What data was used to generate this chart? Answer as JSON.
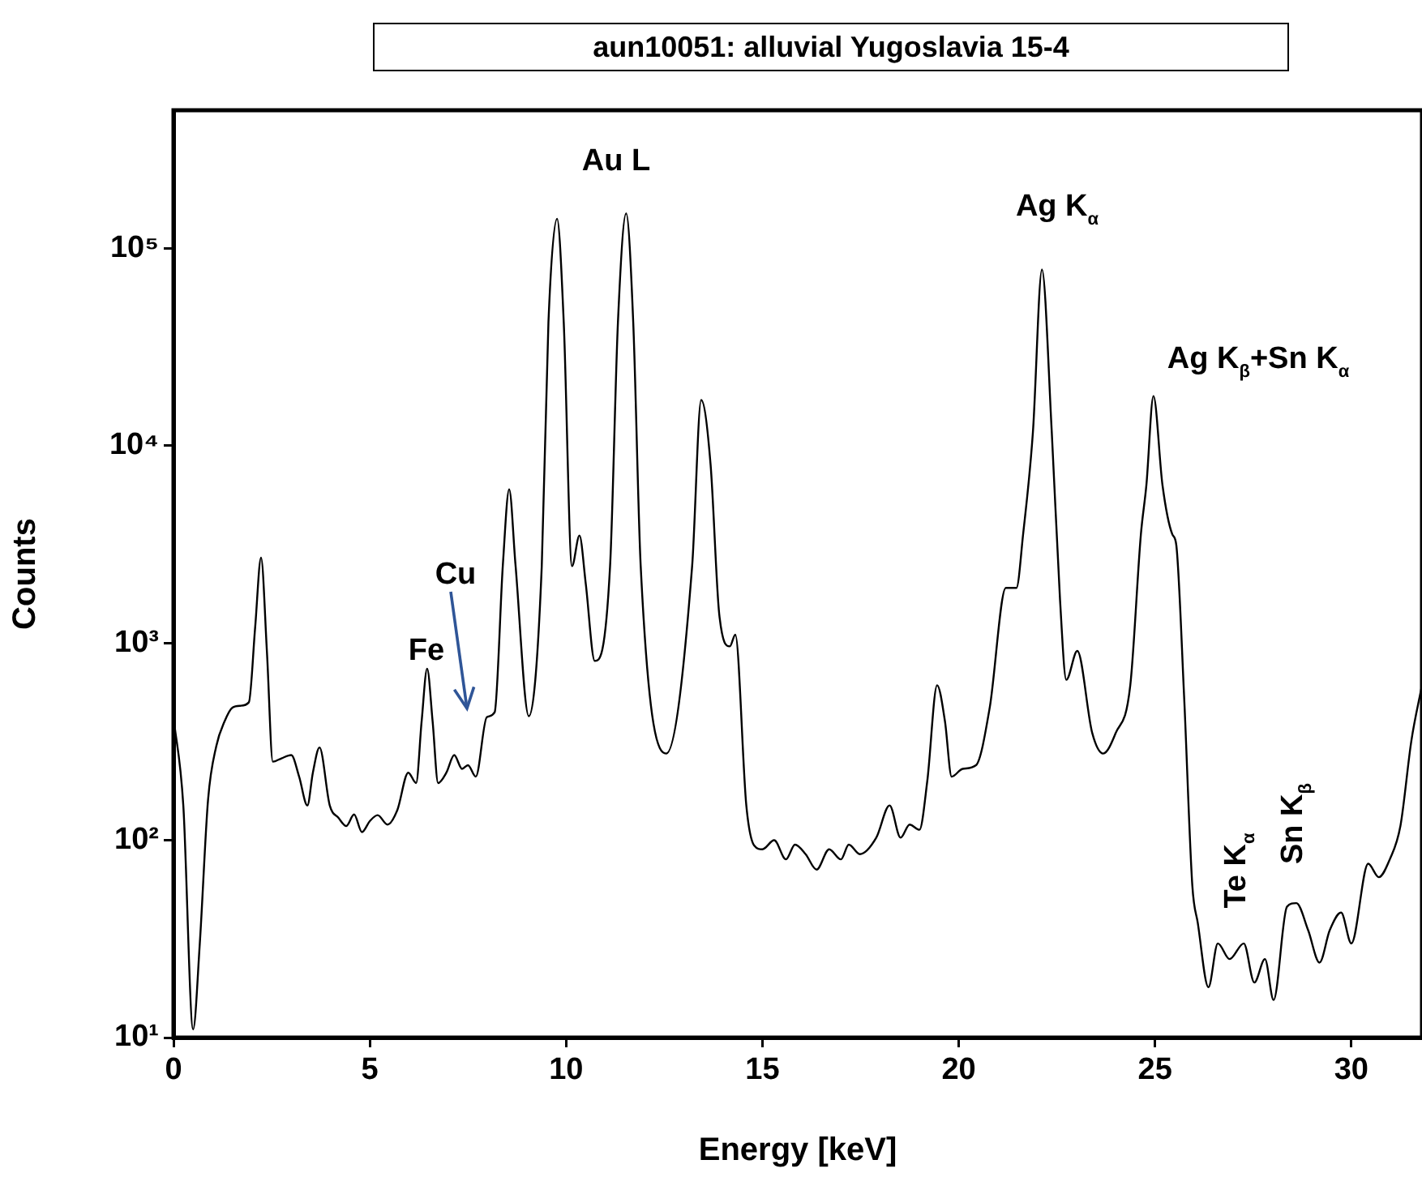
{
  "chart_data": {
    "type": "line",
    "title": "aun10051: alluvial Yugoslavia 15-4",
    "xlabel": "Energy [keV]",
    "ylabel": "Counts",
    "x": [
      0,
      0.25,
      0.5,
      0.67,
      0.88,
      1.09,
      1.3,
      1.5,
      1.7,
      1.92,
      2.08,
      2.23,
      2.38,
      2.53,
      2.75,
      3.0,
      3.2,
      3.41,
      3.55,
      3.72,
      3.98,
      4.2,
      4.4,
      4.6,
      4.8,
      5.0,
      5.2,
      5.45,
      5.7,
      5.98,
      6.18,
      6.32,
      6.46,
      6.6,
      6.74,
      6.95,
      7.15,
      7.35,
      7.5,
      7.7,
      7.98,
      8.18,
      8.39,
      8.55,
      8.71,
      9.05,
      9.38,
      9.55,
      9.77,
      9.94,
      10.15,
      10.34,
      10.5,
      10.73,
      11.12,
      11.32,
      11.53,
      11.71,
      11.9,
      12.55,
      13.21,
      13.44,
      13.68,
      13.9,
      14.17,
      14.31,
      14.59,
      14.79,
      15.0,
      15.3,
      15.6,
      15.83,
      16.1,
      16.38,
      16.7,
      17.0,
      17.2,
      17.48,
      17.9,
      18.24,
      18.52,
      18.75,
      19.0,
      19.2,
      19.45,
      19.65,
      19.82,
      20.1,
      20.44,
      20.79,
      21.2,
      21.47,
      21.64,
      21.89,
      22.12,
      22.37,
      22.58,
      22.74,
      23.02,
      23.4,
      23.68,
      24.0,
      24.37,
      24.64,
      24.78,
      24.96,
      25.19,
      25.44,
      25.54,
      25.74,
      25.95,
      26.09,
      26.36,
      26.6,
      26.9,
      27.26,
      27.53,
      27.8,
      28.02,
      28.36,
      28.6,
      28.9,
      29.19,
      29.45,
      29.74,
      30.0,
      30.43,
      30.7,
      30.98,
      31.25,
      31.53,
      31.8
    ],
    "series": [
      {
        "color": "#000000",
        "values": [
          420,
          150,
          11,
          30,
          160,
          300,
          400,
          470,
          480,
          500,
          1200,
          2700,
          900,
          250,
          260,
          270,
          210,
          150,
          220,
          295,
          150,
          130,
          118,
          135,
          110,
          125,
          134,
          120,
          142,
          220,
          195,
          400,
          740,
          400,
          195,
          220,
          270,
          230,
          240,
          210,
          420,
          445,
          2500,
          6000,
          2500,
          425,
          2450,
          42000,
          141000,
          42000,
          2450,
          3500,
          2000,
          810,
          2450,
          42000,
          150000,
          42000,
          2450,
          275,
          2450,
          17000,
          8000,
          1400,
          960,
          1100,
          150,
          94,
          90,
          100,
          80,
          95,
          85,
          71,
          90,
          80,
          95,
          85,
          103,
          150,
          103,
          120,
          113,
          200,
          610,
          400,
          210,
          230,
          240,
          470,
          1900,
          1900,
          3550,
          11700,
          78000,
          11700,
          1660,
          650,
          910,
          350,
          275,
          350,
          610,
          3550,
          6300,
          17800,
          6300,
          3550,
          3150,
          540,
          59,
          38,
          18,
          30,
          25,
          30,
          19,
          25,
          15.5,
          46,
          48,
          35,
          24,
          35,
          43,
          30,
          76,
          65,
          80,
          118,
          320,
          610
        ]
      }
    ],
    "xlim": [
      0,
      31.8
    ],
    "xticks": [
      0,
      5,
      10,
      15,
      20,
      25,
      30
    ],
    "ylim": [
      10,
      500000
    ],
    "log": "y",
    "yticks": [
      {
        "value": 10,
        "label": "10¹"
      },
      {
        "value": 100,
        "label": "10²"
      },
      {
        "value": 1000,
        "label": "10³"
      },
      {
        "value": 10000,
        "label": "10⁴"
      },
      {
        "value": 100000,
        "label": "10⁵"
      }
    ],
    "grid": false,
    "legend": false,
    "marker": "none",
    "line_style": "solid",
    "annotations": [
      "Au L",
      "Ag K$_{α}$",
      "Ag K$_{β}$+Sn K$_{α}$",
      "Cu",
      "Fe",
      "Te K$_{α}$",
      "Sn K$_{β}$"
    ]
  }
}
